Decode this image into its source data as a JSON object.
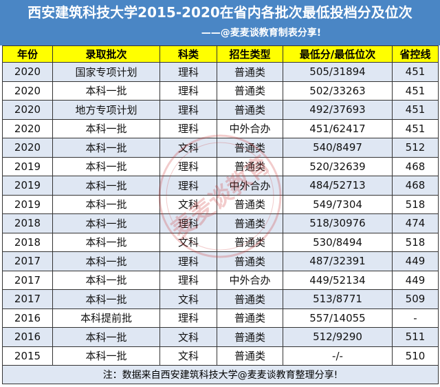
{
  "header": {
    "title": "西安建筑科技大学2015-2020在省内各批次最低投档分及位次",
    "subtitle": "——@麦麦谈教育制表分享!"
  },
  "table": {
    "columns": [
      "年份",
      "录取批次",
      "科类",
      "招生类型",
      "最低分/最低位次",
      "省控线"
    ],
    "rows": [
      [
        "2020",
        "国家专项计划",
        "理科",
        "普通类",
        "505/31894",
        "451"
      ],
      [
        "2020",
        "本科一批",
        "理科",
        "普通类",
        "502/33263",
        "451"
      ],
      [
        "2020",
        "地方专项计划",
        "理科",
        "普通类",
        "492/37693",
        "451"
      ],
      [
        "2020",
        "本科一批",
        "理科",
        "中外合办",
        "451/62417",
        "451"
      ],
      [
        "2020",
        "本科一批",
        "文科",
        "普通类",
        "540/8497",
        "512"
      ],
      [
        "2019",
        "本科一批",
        "理科",
        "普通类",
        "520/32639",
        "468"
      ],
      [
        "2019",
        "本科一批",
        "理科",
        "中外合办",
        "484/52713",
        "468"
      ],
      [
        "2019",
        "本科一批",
        "文科",
        "普通类",
        "549/7304",
        "518"
      ],
      [
        "2018",
        "本科一批",
        "理科",
        "普通类",
        "518/30976",
        "474"
      ],
      [
        "2018",
        "本科一批",
        "文科",
        "普通类",
        "530/8494",
        "518"
      ],
      [
        "2017",
        "本科一批",
        "理科",
        "普通类",
        "487/32391",
        "449"
      ],
      [
        "2017",
        "本科一批",
        "理科",
        "中外合办",
        "449/52134",
        "449"
      ],
      [
        "2017",
        "本科一批",
        "文科",
        "普通类",
        "513/8771",
        "509"
      ],
      [
        "2016",
        "本科提前批",
        "理科",
        "普通类",
        "557/14055",
        "-"
      ],
      [
        "2016",
        "本科一批",
        "文科",
        "普通类",
        "512/9290",
        "511"
      ],
      [
        "2015",
        "本科一批",
        "文科",
        "普通类",
        "-/-",
        "510"
      ]
    ],
    "note": "注：数据来自西安建筑科技大学@麦麦谈教育整理分享!"
  },
  "watermark": {
    "text": "麦麦谈教育",
    "color": "#cc3333"
  },
  "colors": {
    "header_bg": "#4a86c5",
    "column_header_bg": "#ffff00",
    "row_stripe": "#dfe7f3"
  }
}
